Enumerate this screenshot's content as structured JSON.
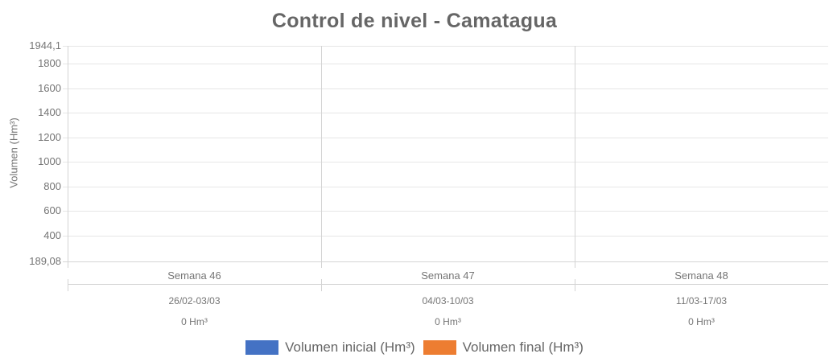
{
  "chart_data": {
    "type": "bar",
    "title": "Control de nivel - Camatagua",
    "xlabel": "",
    "ylabel": "Volumen (Hm³)",
    "ylim": [
      189.08,
      1944.1
    ],
    "grid": true,
    "legend_position": "bottom",
    "y_ticks": [
      {
        "value": 1944.1,
        "label": "1944,1"
      },
      {
        "value": 1800,
        "label": "1800"
      },
      {
        "value": 1600,
        "label": "1600"
      },
      {
        "value": 1400,
        "label": "1400"
      },
      {
        "value": 1200,
        "label": "1200"
      },
      {
        "value": 1000,
        "label": "1000"
      },
      {
        "value": 800,
        "label": "800"
      },
      {
        "value": 600,
        "label": "600"
      },
      {
        "value": 400,
        "label": "400"
      },
      {
        "value": 189.08,
        "label": "189,08"
      }
    ],
    "categories": [
      "Semana 46",
      "Semana 47",
      "Semana 48"
    ],
    "category_dates": [
      "26/02-03/03",
      "04/03-10/03",
      "11/03-17/03"
    ],
    "category_volumes": [
      "0 Hm³",
      "0 Hm³",
      "0 Hm³"
    ],
    "series": [
      {
        "name": "Volumen inicial (Hm³)",
        "color": "#4472C4",
        "values": [
          0,
          0,
          0
        ]
      },
      {
        "name": "Volumen final (Hm³)",
        "color": "#ED7D31",
        "values": [
          0,
          0,
          0
        ]
      }
    ]
  },
  "colors": {
    "grid_line": "#e6e6e6",
    "axis_line": "#d4d4d4",
    "title_text": "#666666",
    "label_text": "#757575",
    "legend_text": "#666666"
  }
}
